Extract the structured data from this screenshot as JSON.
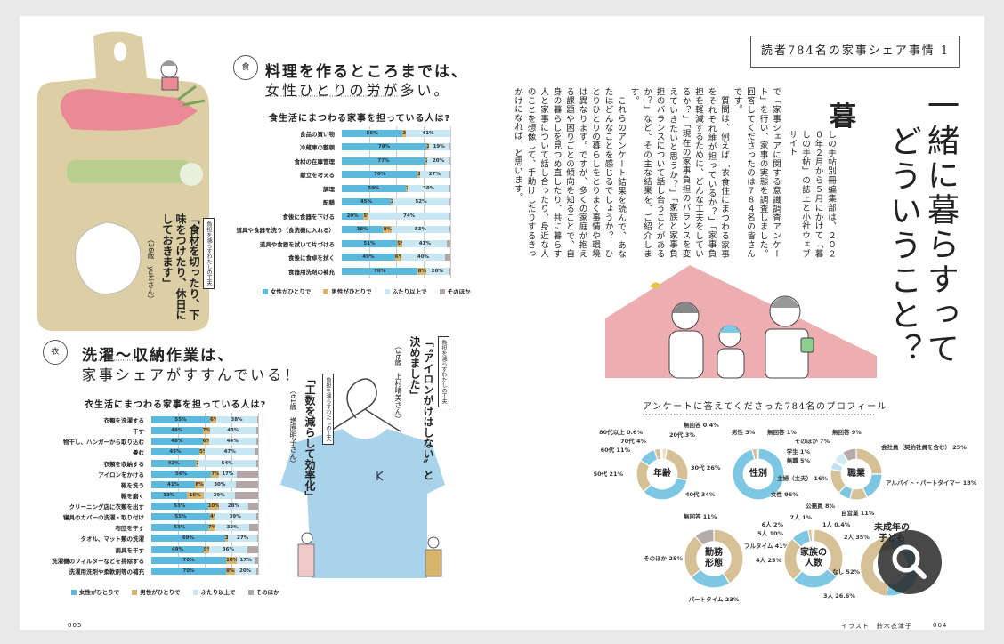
{
  "colors": {
    "female": "#5cb8dc",
    "male": "#d8b56d",
    "multiple": "#c9e7f3",
    "other": "#b3a6a6",
    "tan": "#d6c095",
    "blue": "#7ec7e3",
    "light": "#eadfc4",
    "lightblue": "#bfe2f0",
    "gray": "#b5aaaa",
    "board": "#dccfa5",
    "shirt": "#a9d3ea",
    "house": "#ecaeb0"
  },
  "food_section": {
    "icon": "food-icon",
    "icon_char": "食",
    "heading_bold": "料理を作るところまでは、",
    "heading_sub": "女性ひとりの労が多い。"
  },
  "food_quote": {
    "tag": "負担を減らすわたしの工夫",
    "text": "「食材を切ったり、下味をつけたり、休日にしておきます」",
    "name": "（36歳　yukiさん）"
  },
  "clothes_section": {
    "icon": "shirt-icon",
    "icon_char": "衣",
    "heading_bold": "洗濯～収納作業は、",
    "heading_sub": "家事シェアがすすんでいる！"
  },
  "clothes_quote1": {
    "tag": "負担を減らすわたしの工夫",
    "text": "「〝アイロンがけはしない〟と決めました」",
    "name": "（36歳　上村晴美さん）"
  },
  "clothes_quote2": {
    "tag": "負担を減らすわたしの工夫",
    "text": "「工数を減らして効率化」",
    "name": "（61歳　増原明子さん）"
  },
  "legend": [
    "女性がひとりで",
    "男性がひとりで",
    "ふたり以上で",
    "そのほか"
  ],
  "chart_data": [
    {
      "type": "bar",
      "stacked": true,
      "orientation": "horizontal",
      "unit": "%",
      "title": "食生活にまつわる家事を担っている人は?",
      "categories": [
        "食品の買い物",
        "冷蔵庫の整頓",
        "食材の在庫管理",
        "献立を考える",
        "調理",
        "配膳",
        "食後に食器を下げる",
        "道具や食器を洗う（食洗機に入れる）",
        "道具や食器を拭いて片づける",
        "食後に食卓を拭く",
        "食器用洗剤の補充"
      ],
      "series": [
        {
          "name": "女性がひとりで",
          "values": [
            56,
            78,
            77,
            70,
            59,
            45,
            20,
            38,
            51,
            49,
            70
          ]
        },
        {
          "name": "男性がひとりで",
          "values": [
            3,
            2,
            2,
            2,
            2,
            2,
            5,
            8,
            5,
            6,
            8
          ]
        },
        {
          "name": "ふたり以上で",
          "values": [
            41,
            19,
            20,
            27,
            38,
            52,
            74,
            53,
            41,
            40,
            20
          ]
        },
        {
          "name": "そのほか",
          "values": [
            0,
            1,
            1,
            1,
            1,
            1,
            1,
            1,
            3,
            5,
            2
          ]
        }
      ],
      "xlim": [
        0,
        100
      ],
      "grid": true,
      "legend": "bottom"
    },
    {
      "type": "bar",
      "stacked": true,
      "orientation": "horizontal",
      "unit": "%",
      "title": "衣生活にまつわる家事を担っている人は?",
      "categories": [
        "衣類を洗濯する",
        "干す",
        "物干し、ハンガーから取り込む",
        "畳む",
        "衣類を収納する",
        "アイロンをかける",
        "靴を洗う",
        "靴を磨く",
        "クリーニング店に衣類を出す",
        "寝具のカバーの洗濯・取り付け",
        "布団を干す",
        "タオル、マット類の洗濯",
        "雨具を干す",
        "洗濯機のフィルターなどを掃除する",
        "洗濯用洗剤や柔軟剤等の補充"
      ],
      "series": [
        {
          "name": "女性がひとりで",
          "values": [
            55,
            48,
            48,
            45,
            42,
            56,
            41,
            33,
            53,
            55,
            53,
            69,
            49,
            70,
            70
          ]
        },
        {
          "name": "男性がひとりで",
          "values": [
            6,
            7,
            6,
            5,
            2,
            7,
            8,
            16,
            10,
            4,
            7,
            3,
            5,
            10,
            8
          ]
        },
        {
          "name": "ふたり以上で",
          "values": [
            38,
            43,
            44,
            47,
            54,
            17,
            30,
            29,
            28,
            39,
            32,
            27,
            36,
            17,
            20
          ]
        },
        {
          "name": "そのほか",
          "values": [
            1,
            2,
            2,
            3,
            2,
            20,
            21,
            22,
            9,
            2,
            8,
            1,
            10,
            3,
            2
          ]
        }
      ],
      "xlim": [
        0,
        100
      ],
      "grid": true,
      "legend": "bottom"
    },
    {
      "type": "pie",
      "donut": true,
      "title": "年齢",
      "labels": [
        "20代",
        "30代",
        "40代",
        "50代",
        "60代",
        "70代",
        "80代以上",
        "無回答"
      ],
      "values": [
        3,
        26,
        34,
        21,
        11,
        4,
        0.6,
        0.4
      ],
      "colors": [
        "#eadfc4",
        "#d6c095",
        "#7ec7e3",
        "#d6c095",
        "#7ec7e3",
        "#d6c095",
        "#eadfc4",
        "#eee9dc"
      ]
    },
    {
      "type": "pie",
      "donut": true,
      "title": "性別",
      "labels": [
        "女性",
        "男性",
        "無回答"
      ],
      "values": [
        96,
        3,
        1
      ],
      "colors": [
        "#7ec7e3",
        "#d6c095",
        "#eadfc4"
      ]
    },
    {
      "type": "pie",
      "donut": true,
      "title": "職業",
      "labels": [
        "会社員（契約社員を含む）",
        "アルバイト・パートタイマー",
        "自営業",
        "公務員",
        "主婦（主夫）",
        "無職",
        "学生",
        "そのほか",
        "無回答"
      ],
      "values": [
        25,
        18,
        11,
        8,
        16,
        5,
        1,
        7,
        9
      ],
      "colors": [
        "#d6c095",
        "#7ec7e3",
        "#d6c095",
        "#7ec7e3",
        "#d6c095",
        "#bfe2f0",
        "#eadfc4",
        "#d2ecf6",
        "#b5aaaa"
      ]
    },
    {
      "type": "pie",
      "donut": true,
      "title": "勤務形態",
      "labels": [
        "フルタイム",
        "パートタイム",
        "そのほか",
        "無回答"
      ],
      "values": [
        41,
        23,
        25,
        11
      ],
      "colors": [
        "#d6c095",
        "#7ec7e3",
        "#d6c095",
        "#b5aaaa"
      ]
    },
    {
      "type": "pie",
      "donut": true,
      "title": "家族の人数",
      "labels": [
        "1人",
        "2人",
        "3人",
        "4人",
        "5人",
        "6人",
        "7人"
      ],
      "values": [
        0.4,
        35,
        26.6,
        25,
        10,
        2,
        1
      ],
      "colors": [
        "#eadfc4",
        "#d6c095",
        "#7ec7e3",
        "#d6c095",
        "#7ec7e3",
        "#d6c095",
        "#eadfc4"
      ]
    },
    {
      "type": "pie",
      "donut": true,
      "title": "未成年の子ども",
      "labels": [
        "なし"
      ],
      "values": [
        52
      ],
      "colors": [
        "#7ec7e3"
      ]
    }
  ],
  "right_page": {
    "series_title": "読者784名の家事シェア事情 1",
    "title_col1": "一緒に暮らすって",
    "title_col2": "どういうこと？",
    "drop_cap": "暮",
    "lead": "しの手帖別冊編集部は、２０２０年２月から５月にかけて「暮しの手帖」の誌上と小社ウェブサイト",
    "p1_rest": "で「家事シェアに関する意識調査アンケート」を行い、家事の実態を調査しました。回答してくださったのは７８４名の皆さんです。",
    "p2": "質問は、例えば「衣食住にまつわる家事をそれぞれ誰が担っているか？」「家事負担を軽減するために、どんな工夫をしているか？」「現在の家事負担のバランスを変えていきたいと思うか？」「家族と家事負担のバランスについて話し合うことがあるか？」など。その主な結果を、ご紹介します。",
    "p3": "これらのアンケート結果を読んで、あなたはどんなことを感じるでしょうか？　ひとりひとりの暮らしをとりまく事情や環境は異なります。ですが、多くの家庭が抱える課題や困りごとの傾向を知ることで、自身の暮らしを見つめ直したり、共に暮らす人と家事について話し合ったり、身近な人のことを想像して、手助けしたりするきっかけになれば、と思います。",
    "profile_title": "アンケートに答えてくださった784名のプロフィール"
  },
  "footer": {
    "left_page_number": "005",
    "credit": "イラスト　鈴木衣津子",
    "right_page_number": "004"
  },
  "zoom_button": {
    "icon": "magnifier-icon"
  }
}
